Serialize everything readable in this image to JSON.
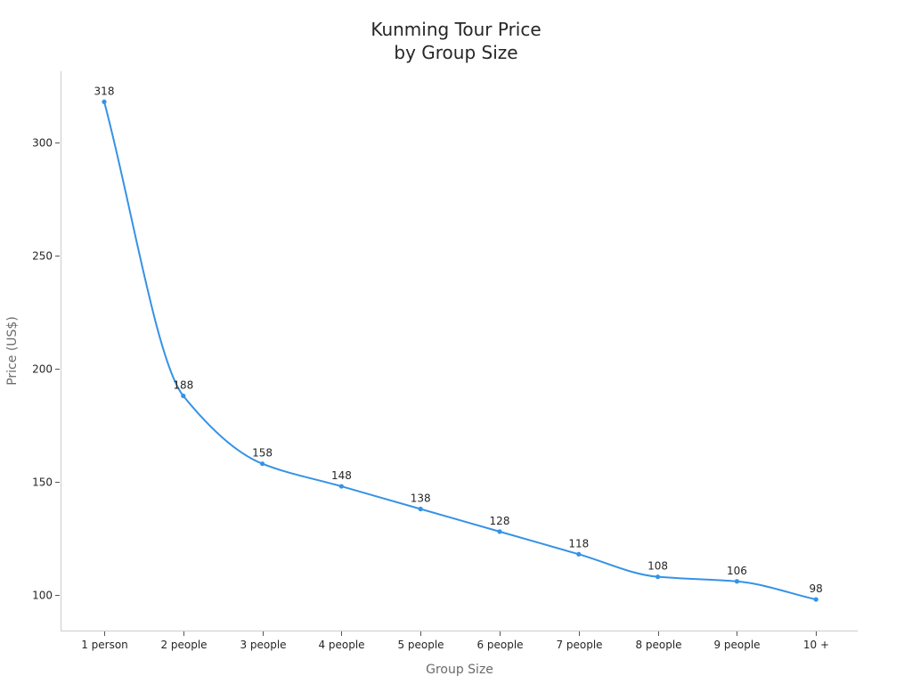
{
  "chart_data": {
    "type": "line",
    "title": "Kunming Tour Price\nby Group Size",
    "title_lines": [
      "Kunming Tour Price",
      "by Group Size"
    ],
    "xlabel": "Group Size",
    "ylabel": "Price (US$)",
    "categories": [
      "1 person",
      "2 people",
      "3 people",
      "4 people",
      "5 people",
      "6 people",
      "7 people",
      "8 people",
      "9 people",
      "10 +"
    ],
    "series": [
      {
        "name": "Price (US$)",
        "values": [
          318,
          188,
          158,
          148,
          138,
          128,
          118,
          108,
          106,
          98
        ],
        "color": "#3592e6",
        "smooth": true,
        "markers": true,
        "data_labels": true
      }
    ],
    "y_ticks": [
      100,
      150,
      200,
      250,
      300
    ],
    "ylim": [
      85,
      332
    ],
    "grid": false,
    "legend": "none"
  }
}
